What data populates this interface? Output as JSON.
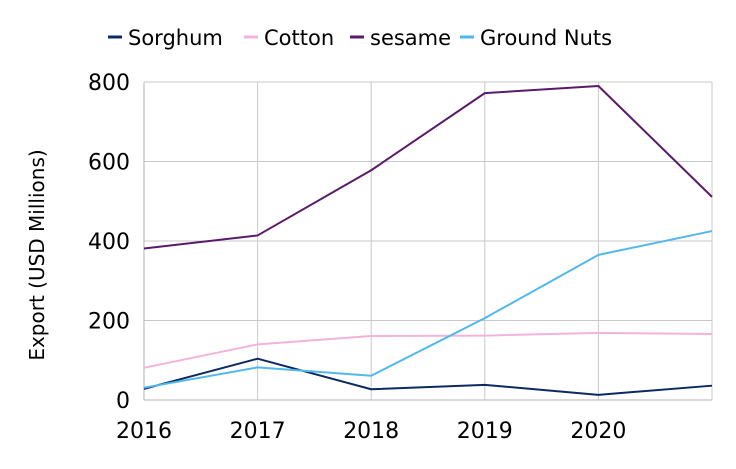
{
  "chart_data": {
    "type": "line",
    "title": "",
    "xlabel": "",
    "ylabel": "Export (USD Millions)",
    "x": [
      2016,
      2017,
      2018,
      2019,
      2020,
      2021
    ],
    "x_ticks": [
      "2016",
      "2017",
      "2018",
      "2019",
      "2020"
    ],
    "xlim": [
      2016,
      2021
    ],
    "ylim": [
      0,
      800
    ],
    "y_ticks": [
      0,
      200,
      400,
      600,
      800
    ],
    "grid": true,
    "legend_position": "top",
    "series": [
      {
        "name": "Sorghum",
        "color": "#0b2a63",
        "values": [
          28,
          104,
          27,
          38,
          13,
          36
        ]
      },
      {
        "name": "Cotton",
        "color": "#f4b3dc",
        "values": [
          81,
          140,
          161,
          162,
          169,
          166
        ]
      },
      {
        "name": "sesame",
        "color": "#5a1a6b",
        "values": [
          381,
          414,
          578,
          772,
          790,
          511
        ]
      },
      {
        "name": "Ground Nuts",
        "color": "#52b8ec",
        "values": [
          31,
          82,
          61,
          206,
          365,
          425
        ]
      }
    ]
  }
}
